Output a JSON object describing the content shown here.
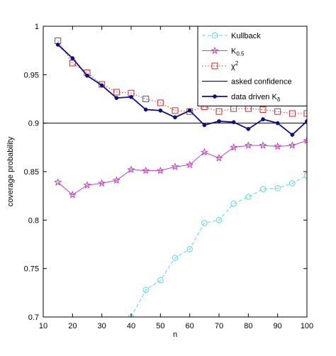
{
  "chart_data": {
    "type": "line",
    "xlabel": "n",
    "ylabel": "coverage probability",
    "xlim": [
      10,
      100
    ],
    "ylim": [
      0.7,
      1.0
    ],
    "xticks": [
      "10",
      "20",
      "30",
      "40",
      "50",
      "60",
      "70",
      "80",
      "90",
      "100"
    ],
    "yticks": [
      "0.7",
      "0.75",
      "0.8",
      "0.85",
      "0.9",
      "0.95",
      "1"
    ],
    "grid": false,
    "legend_position": "top-right",
    "x": [
      15,
      20,
      25,
      30,
      35,
      40,
      45,
      50,
      55,
      60,
      65,
      70,
      75,
      80,
      85,
      90,
      95,
      100
    ],
    "series": [
      {
        "name": "Kullback",
        "legend": "Kullback",
        "color": "#5fd8e0",
        "style": "dashed",
        "marker": "circle",
        "values": [
          null,
          null,
          null,
          null,
          null,
          0.7,
          0.728,
          0.738,
          0.761,
          0.77,
          0.797,
          0.8,
          0.817,
          0.824,
          0.832,
          0.833,
          0.838,
          0.846
        ]
      },
      {
        "name": "K_0.5",
        "legend": "K",
        "legend_sub": "0.5",
        "color": "#c040c0",
        "style": "solid",
        "marker": "star",
        "values": [
          0.839,
          0.826,
          0.836,
          0.838,
          0.841,
          0.852,
          0.851,
          0.851,
          0.855,
          0.857,
          0.87,
          0.864,
          0.875,
          0.877,
          0.877,
          0.876,
          0.877,
          0.882
        ]
      },
      {
        "name": "chi^2",
        "legend": "χ",
        "legend_sup": "2",
        "color": "#c03030",
        "style": "dotted",
        "marker": "square",
        "values": [
          0.985,
          0.962,
          0.952,
          0.94,
          0.932,
          0.931,
          0.925,
          0.921,
          0.913,
          0.912,
          0.917,
          0.912,
          0.915,
          0.915,
          0.914,
          0.912,
          0.91,
          0.91
        ]
      },
      {
        "name": "asked confidence",
        "legend": "asked confidence",
        "color": "#000000",
        "style": "solid",
        "marker": "none",
        "constant": 0.9
      },
      {
        "name": "data driven K_delta",
        "legend": "data driven K",
        "legend_sub": "δ",
        "color": "#101080",
        "style": "solid",
        "marker": "dot",
        "values": [
          0.981,
          0.967,
          0.949,
          0.939,
          0.926,
          0.927,
          0.914,
          0.913,
          0.906,
          0.913,
          0.898,
          0.902,
          0.901,
          0.894,
          0.904,
          0.9,
          0.888,
          0.902
        ]
      }
    ]
  }
}
